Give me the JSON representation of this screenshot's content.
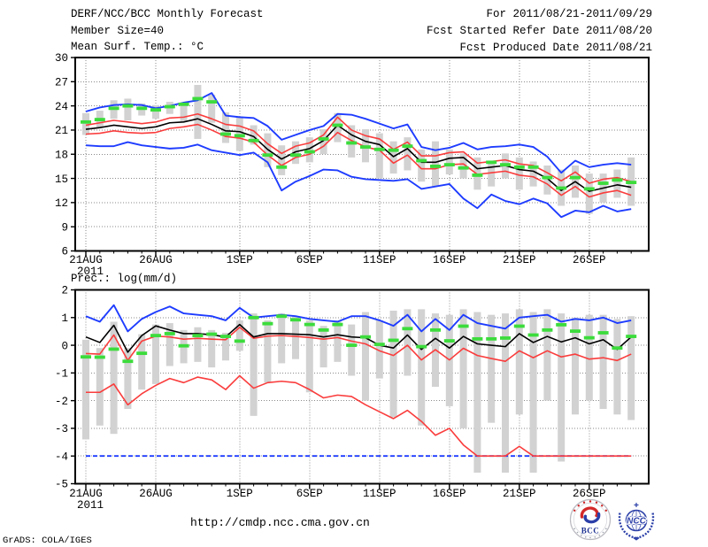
{
  "header": {
    "title": "DERF/NCC/BCC Monthly Forecast",
    "member_size": "Member Size=40",
    "for_range": "For 2011/08/21-2011/09/29",
    "fcst_started": "Fcst Started Refer Date 2011/08/20",
    "fcst_produced": "Fcst Produced Date 2011/08/21"
  },
  "footer": {
    "url": "http://cmdp.ncc.cma.gov.cn",
    "credit": "GrADS: COLA/IGES",
    "bcc_logo_label": "BCC",
    "ncc_logo_label": "NCC"
  },
  "colors": {
    "blue": "#1e3cff",
    "red": "#fa3c3c",
    "green": "#3cdc3c",
    "black": "#000000",
    "gray_bar": "#d2d2d2",
    "grid": "#8a8a8a"
  },
  "chart_data": [
    {
      "type": "line",
      "panel": "temperature",
      "title": "Mean Surf. Temp.: °C",
      "ylabel": "°C",
      "ylim": [
        6,
        30
      ],
      "yticks": [
        6,
        9,
        12,
        15,
        18,
        21,
        24,
        27,
        30
      ],
      "grid": true,
      "n_days": 40,
      "x_year_label": "2011",
      "xtick_labels": [
        "21AUG",
        "26AUG",
        "1SEP",
        "6SEP",
        "11SEP",
        "16SEP",
        "21SEP",
        "26SEP"
      ],
      "xtick_days": [
        0,
        5,
        11,
        16,
        21,
        26,
        31,
        36
      ],
      "dates": [
        "21AUG",
        "22AUG",
        "23AUG",
        "24AUG",
        "25AUG",
        "26AUG",
        "27AUG",
        "28AUG",
        "29AUG",
        "30AUG",
        "31AUG",
        "1SEP",
        "2SEP",
        "3SEP",
        "4SEP",
        "5SEP",
        "6SEP",
        "7SEP",
        "8SEP",
        "9SEP",
        "10SEP",
        "11SEP",
        "12SEP",
        "13SEP",
        "14SEP",
        "15SEP",
        "16SEP",
        "17SEP",
        "18SEP",
        "19SEP",
        "20SEP",
        "21SEP",
        "22SEP",
        "23SEP",
        "24SEP",
        "25SEP",
        "26SEP",
        "27SEP",
        "28SEP",
        "29SEP"
      ],
      "series": [
        {
          "name": "member-max",
          "color": "blue",
          "values": [
            23.3,
            23.8,
            24.1,
            24.2,
            24.1,
            23.7,
            24.0,
            24.4,
            24.7,
            25.6,
            22.8,
            22.6,
            22.5,
            21.5,
            19.8,
            20.4,
            21.0,
            21.5,
            23.0,
            22.9,
            22.4,
            21.8,
            21.2,
            21.7,
            18.9,
            18.5,
            18.8,
            19.4,
            18.6,
            18.9,
            19.0,
            19.2,
            18.9,
            17.7,
            15.7,
            17.2,
            16.4,
            16.7,
            16.9,
            16.7
          ]
        },
        {
          "name": "member-min",
          "color": "blue",
          "values": [
            19.1,
            19.0,
            19.0,
            19.5,
            19.1,
            18.9,
            18.7,
            18.8,
            19.2,
            18.5,
            18.2,
            17.9,
            18.2,
            17.0,
            13.5,
            14.6,
            15.3,
            16.1,
            16.0,
            15.2,
            14.9,
            14.8,
            14.7,
            14.9,
            13.7,
            14.0,
            14.3,
            12.5,
            11.3,
            13.0,
            12.2,
            11.8,
            12.5,
            11.9,
            10.2,
            11.0,
            10.8,
            11.6,
            10.9,
            11.2
          ]
        },
        {
          "name": "upper-spread",
          "color": "red",
          "values": [
            21.6,
            21.9,
            22.2,
            22.0,
            21.8,
            22.0,
            22.5,
            22.6,
            23.0,
            22.4,
            21.7,
            21.5,
            20.9,
            19.3,
            18.1,
            19.0,
            19.4,
            20.4,
            22.6,
            21.0,
            20.3,
            19.9,
            18.6,
            19.5,
            17.8,
            17.8,
            18.2,
            18.3,
            16.9,
            17.1,
            17.3,
            16.8,
            16.6,
            15.7,
            14.7,
            15.8,
            14.4,
            14.9,
            15.1,
            14.6
          ]
        },
        {
          "name": "lower-spread",
          "color": "red",
          "values": [
            20.5,
            20.6,
            20.9,
            20.7,
            20.6,
            20.7,
            21.2,
            21.4,
            21.7,
            21.0,
            20.2,
            20.0,
            19.5,
            17.9,
            16.6,
            17.6,
            18.0,
            19.0,
            20.7,
            19.7,
            18.9,
            18.5,
            16.9,
            17.9,
            16.2,
            16.2,
            16.7,
            16.8,
            15.5,
            15.7,
            15.9,
            15.4,
            15.2,
            14.3,
            12.9,
            14.0,
            12.7,
            13.2,
            13.5,
            12.9
          ]
        },
        {
          "name": "ensemble-mean",
          "color": "black",
          "values": [
            21.1,
            21.3,
            21.6,
            21.4,
            21.2,
            21.4,
            21.9,
            22.0,
            22.4,
            21.7,
            20.9,
            20.8,
            20.2,
            18.6,
            17.4,
            18.3,
            18.7,
            19.7,
            21.6,
            20.4,
            19.6,
            19.2,
            17.7,
            18.7,
            17.0,
            17.0,
            17.5,
            17.6,
            16.2,
            16.4,
            16.6,
            16.1,
            15.9,
            15.0,
            13.5,
            14.6,
            13.4,
            13.8,
            14.2,
            13.9
          ]
        },
        {
          "name": "observation-dashes",
          "color": "green",
          "style": "dash-markers",
          "values": [
            22.0,
            22.3,
            23.7,
            24.0,
            23.7,
            23.5,
            23.9,
            24.2,
            24.9,
            24.5,
            20.5,
            20.3,
            19.7,
            17.9,
            16.4,
            17.9,
            18.3,
            19.9,
            21.6,
            19.4,
            18.9,
            18.6,
            18.5,
            19.0,
            17.2,
            16.5,
            16.7,
            16.3,
            15.4,
            17.0,
            16.7,
            16.4,
            16.4,
            15.1,
            13.8,
            15.1,
            13.7,
            14.4,
            14.8,
            14.5
          ]
        }
      ],
      "bars": {
        "name": "member-spread-bar",
        "top": [
          23.1,
          23.4,
          24.7,
          24.9,
          24.3,
          24.1,
          24.5,
          24.1,
          26.6,
          25.4,
          23.2,
          22.6,
          21.6,
          20.6,
          19.1,
          19.6,
          20.1,
          21.1,
          23.1,
          21.6,
          21.1,
          20.6,
          19.6,
          20.1,
          18.6,
          19.6,
          18.6,
          18.1,
          17.6,
          17.1,
          18.1,
          17.6,
          17.1,
          16.6,
          16.1,
          16.6,
          15.6,
          15.6,
          16.1,
          17.6
        ],
        "bottom": [
          20.4,
          21.3,
          22.4,
          22.2,
          22.8,
          22.4,
          23.0,
          22.1,
          19.9,
          21.9,
          19.4,
          18.4,
          19.2,
          16.4,
          15.4,
          16.8,
          17.0,
          18.0,
          19.5,
          17.6,
          17.0,
          15.0,
          15.6,
          16.0,
          14.6,
          14.0,
          15.5,
          15.0,
          13.6,
          14.0,
          15.0,
          13.6,
          14.0,
          13.0,
          11.6,
          12.6,
          10.6,
          12.0,
          12.6,
          11.6
        ]
      }
    },
    {
      "type": "line",
      "panel": "precipitation",
      "title": "Prec.: log(mm/d)",
      "ylabel": "log(mm/d)",
      "ylim": [
        -5,
        2
      ],
      "yticks": [
        -5,
        -4,
        -3,
        -2,
        -1,
        0,
        1,
        2
      ],
      "grid": true,
      "n_days": 40,
      "x_year_label": "2011",
      "xtick_labels": [
        "21AUG",
        "26AUG",
        "1SEP",
        "6SEP",
        "11SEP",
        "16SEP",
        "21SEP",
        "26SEP"
      ],
      "xtick_days": [
        0,
        5,
        11,
        16,
        21,
        26,
        31,
        36
      ],
      "dates": [
        "21AUG",
        "22AUG",
        "23AUG",
        "24AUG",
        "25AUG",
        "26AUG",
        "27AUG",
        "28AUG",
        "29AUG",
        "30AUG",
        "31AUG",
        "1SEP",
        "2SEP",
        "3SEP",
        "4SEP",
        "5SEP",
        "6SEP",
        "7SEP",
        "8SEP",
        "9SEP",
        "10SEP",
        "11SEP",
        "12SEP",
        "13SEP",
        "14SEP",
        "15SEP",
        "16SEP",
        "17SEP",
        "18SEP",
        "19SEP",
        "20SEP",
        "21SEP",
        "22SEP",
        "23SEP",
        "24SEP",
        "25SEP",
        "26SEP",
        "27SEP",
        "28SEP",
        "29SEP"
      ],
      "series": [
        {
          "name": "member-min",
          "color": "blue",
          "dashed": true,
          "values": [
            -4.0,
            -4.0,
            -4.0,
            -4.0,
            -4.0,
            -4.0,
            -4.0,
            -4.0,
            -4.0,
            -4.0,
            -4.0,
            -4.0,
            -4.0,
            -4.0,
            -4.0,
            -4.0,
            -4.0,
            -4.0,
            -4.0,
            -4.0,
            -4.0,
            -4.0,
            -4.0,
            -4.0,
            -4.0,
            -4.0,
            -4.0,
            -4.0,
            -4.0,
            -4.0,
            -4.0,
            -4.0,
            -4.0,
            -4.0,
            -4.0,
            -4.0,
            -4.0,
            -4.0,
            -4.0,
            -4.0
          ]
        },
        {
          "name": "member-max",
          "color": "blue",
          "values": [
            1.05,
            0.85,
            1.45,
            0.5,
            0.95,
            1.2,
            1.4,
            1.15,
            1.1,
            1.05,
            0.9,
            1.35,
            1.0,
            1.05,
            1.1,
            1.05,
            0.95,
            0.9,
            0.85,
            1.05,
            1.05,
            0.9,
            0.7,
            1.1,
            0.5,
            0.95,
            0.55,
            1.1,
            0.8,
            0.7,
            0.6,
            1.0,
            1.05,
            1.1,
            0.85,
            0.95,
            0.9,
            1.0,
            0.8,
            0.9
          ]
        },
        {
          "name": "lower-spread",
          "color": "red",
          "values": [
            -1.7,
            -1.7,
            -1.4,
            -2.15,
            -1.75,
            -1.45,
            -1.2,
            -1.35,
            -1.15,
            -1.25,
            -1.6,
            -1.1,
            -1.55,
            -1.35,
            -1.3,
            -1.35,
            -1.6,
            -1.9,
            -1.8,
            -1.85,
            -2.15,
            -2.4,
            -2.65,
            -2.35,
            -2.75,
            -3.25,
            -3.0,
            -3.6,
            -4.0,
            -4.0,
            -4.0,
            -3.65,
            -4.0,
            -4.0,
            -4.0,
            -4.0,
            -4.0,
            -4.0,
            -4.0,
            -4.0
          ]
        },
        {
          "name": "upper-spread",
          "color": "red",
          "values": [
            -0.3,
            -0.32,
            0.37,
            -0.55,
            0.15,
            0.33,
            0.3,
            0.22,
            0.25,
            0.22,
            0.2,
            0.65,
            0.25,
            0.33,
            0.35,
            0.32,
            0.28,
            0.22,
            0.28,
            0.15,
            0.05,
            -0.2,
            -0.37,
            0.0,
            -0.53,
            -0.16,
            -0.53,
            -0.11,
            -0.37,
            -0.48,
            -0.58,
            -0.2,
            -0.45,
            -0.2,
            -0.42,
            -0.32,
            -0.5,
            -0.45,
            -0.55,
            -0.32
          ]
        },
        {
          "name": "ensemble-mean",
          "color": "black",
          "values": [
            0.3,
            0.1,
            0.72,
            -0.25,
            0.35,
            0.7,
            0.55,
            0.42,
            0.42,
            0.38,
            0.3,
            0.75,
            0.3,
            0.42,
            0.42,
            0.4,
            0.38,
            0.3,
            0.38,
            0.3,
            0.27,
            0.0,
            -0.1,
            0.37,
            -0.15,
            0.25,
            -0.1,
            0.32,
            0.05,
            0.0,
            -0.05,
            0.42,
            0.1,
            0.32,
            0.12,
            0.27,
            0.05,
            0.2,
            -0.15,
            0.3
          ]
        },
        {
          "name": "observation-dashes",
          "color": "green",
          "style": "dash-markers",
          "values": [
            -0.42,
            -0.43,
            -0.14,
            -0.58,
            -0.29,
            0.35,
            0.42,
            -0.02,
            0.35,
            0.4,
            0.32,
            0.15,
            1.0,
            0.78,
            1.05,
            0.92,
            0.75,
            0.55,
            0.75,
            0.0,
            0.3,
            0.03,
            0.18,
            0.6,
            -0.05,
            0.55,
            0.16,
            0.69,
            0.23,
            0.23,
            0.26,
            0.69,
            0.37,
            0.55,
            0.74,
            0.51,
            0.27,
            0.45,
            -0.1,
            0.32
          ]
        }
      ],
      "bars": {
        "name": "member-spread-bar",
        "top": [
          0.2,
          -0.1,
          0.85,
          -0.1,
          0.4,
          0.75,
          0.8,
          0.55,
          0.65,
          0.55,
          0.45,
          0.9,
          1.15,
          0.9,
          1.15,
          1.05,
          0.9,
          0.7,
          0.9,
          0.75,
          1.2,
          0.9,
          1.25,
          1.3,
          1.3,
          1.15,
          1.1,
          1.3,
          1.2,
          1.1,
          1.15,
          1.3,
          1.2,
          1.3,
          1.15,
          1.0,
          1.1,
          1.1,
          0.95,
          1.05
        ],
        "bottom": [
          -3.4,
          -2.9,
          -3.2,
          -2.3,
          -1.6,
          -1.4,
          -0.75,
          -0.65,
          -0.6,
          -0.8,
          -0.55,
          -0.2,
          -2.55,
          -1.35,
          -0.65,
          -0.5,
          -1.7,
          -0.8,
          -0.6,
          -1.1,
          -2.0,
          -1.2,
          -2.6,
          -1.1,
          -2.9,
          -1.5,
          -2.2,
          -3.0,
          -4.6,
          -2.8,
          -4.6,
          -2.5,
          -4.6,
          -2.0,
          -4.2,
          -2.5,
          -2.0,
          -2.3,
          -2.5,
          -2.7
        ]
      }
    }
  ]
}
